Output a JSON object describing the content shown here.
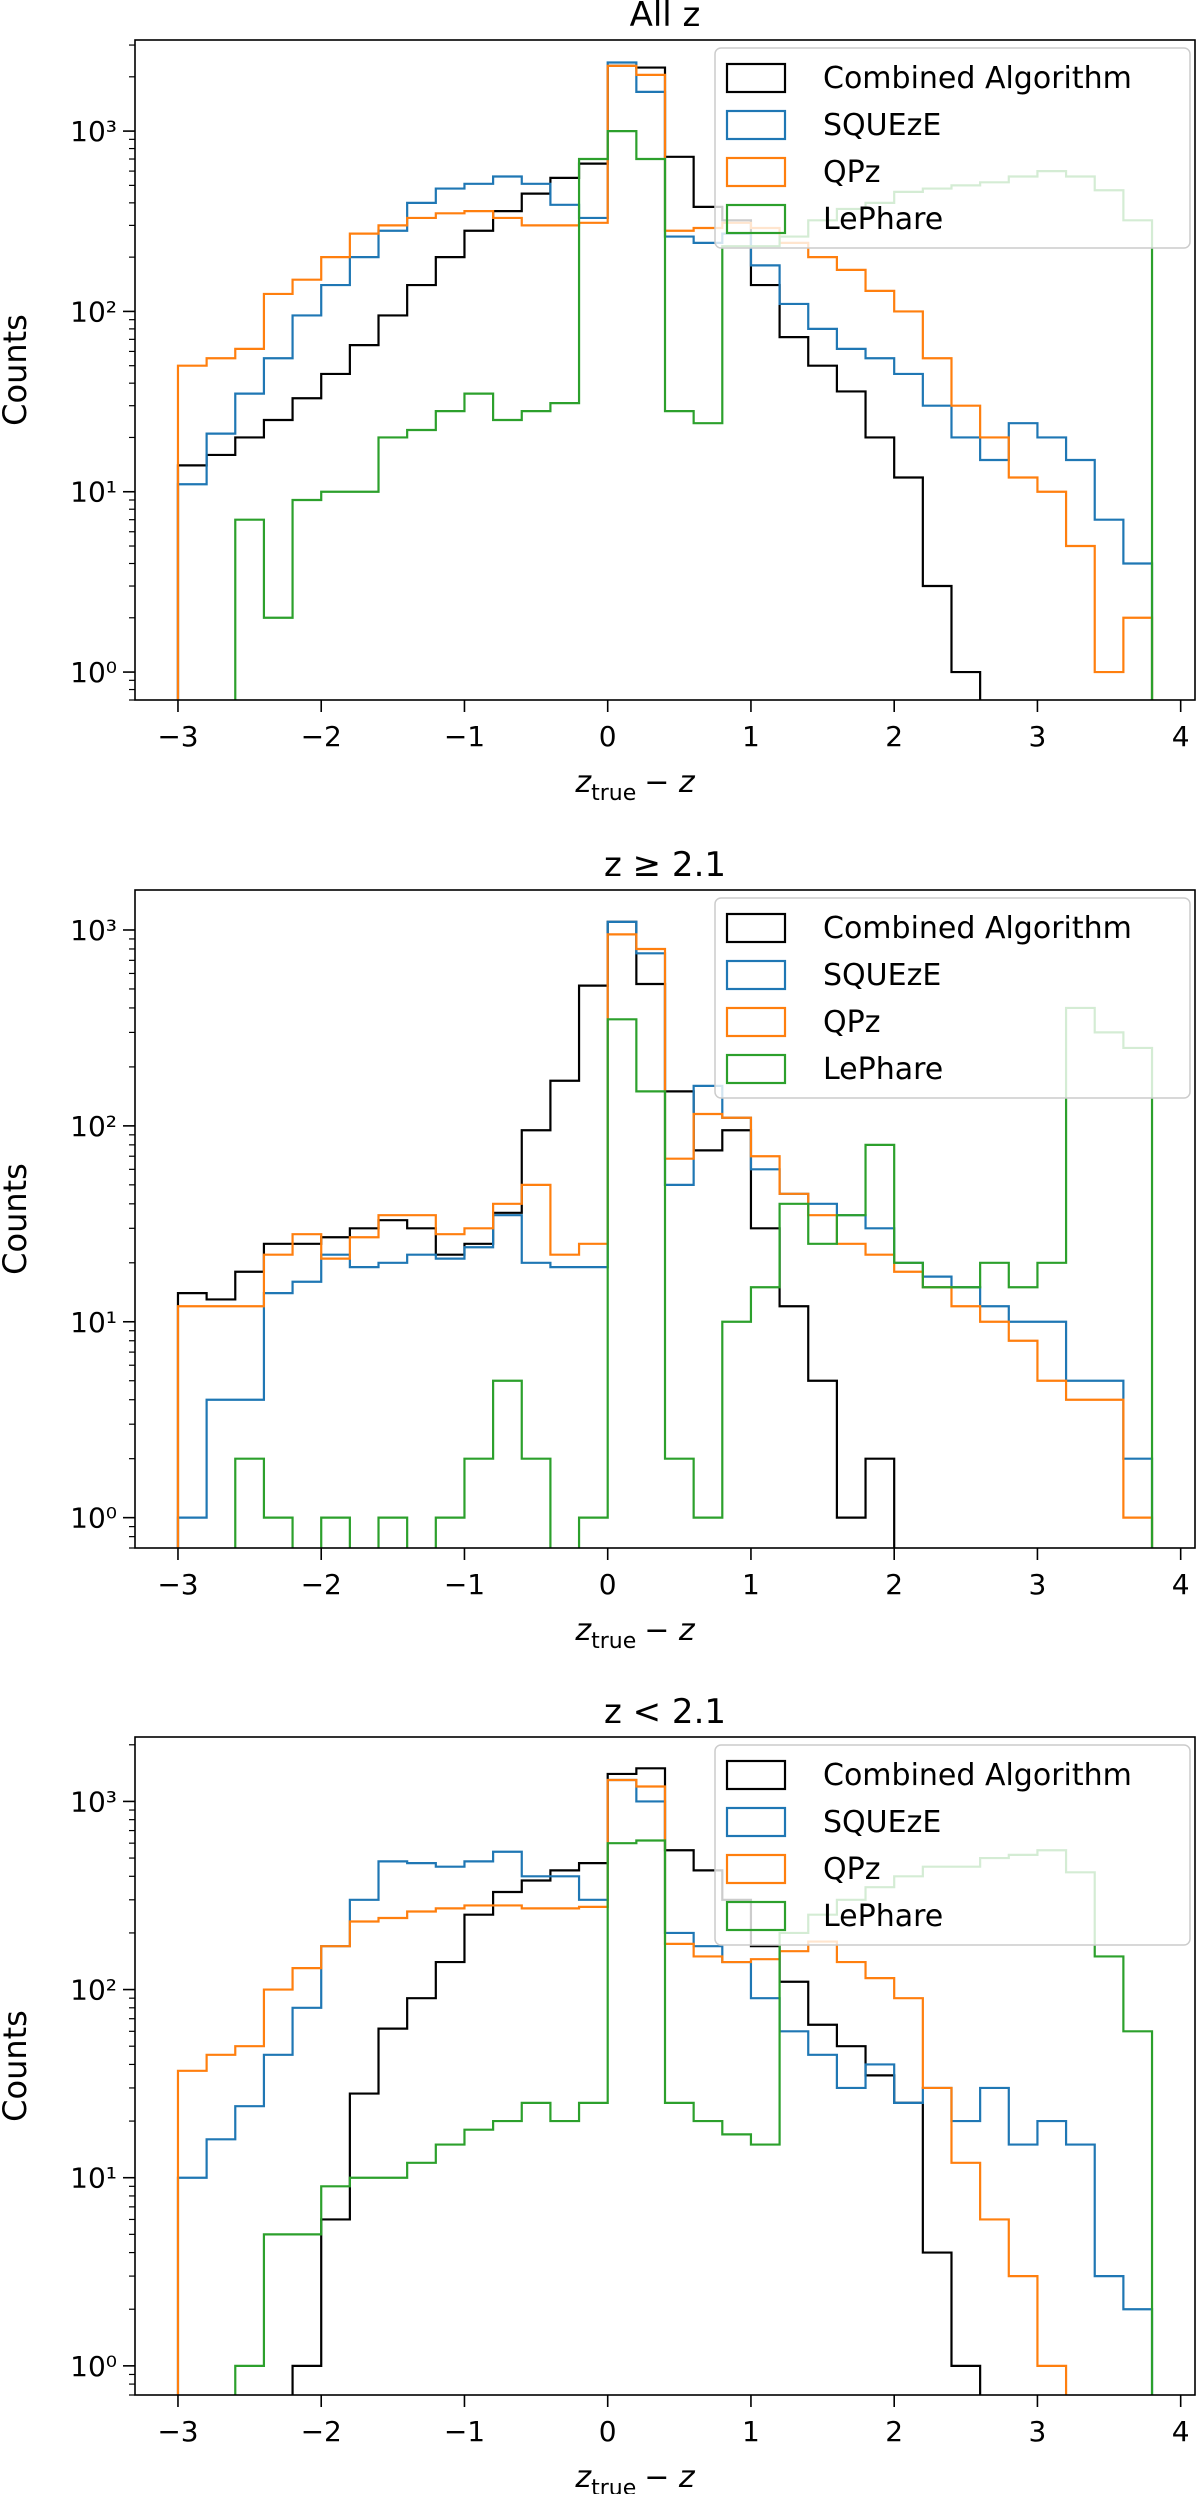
{
  "figure": {
    "xlabel_main": "z",
    "xlabel_sub": "true",
    "xlabel_tail": "− z",
    "ylabel": "Counts"
  },
  "chart_data": [
    {
      "type": "histogram",
      "title": "All z",
      "xlabel": "z_true − z",
      "ylabel": "Counts",
      "yscale": "log",
      "xlim": [
        -3.3,
        4.1
      ],
      "ylim": [
        0.7,
        3200
      ],
      "xticks": [
        -3,
        -2,
        -1,
        0,
        1,
        2,
        3,
        4
      ],
      "xtick_labels": [
        "−3",
        "−2",
        "−1",
        "0",
        "1",
        "2",
        "3",
        "4"
      ],
      "ytick_labels": [
        "10⁰",
        "10¹",
        "10²",
        "10³"
      ],
      "legend": [
        "Combined Algorithm",
        "SQUEzE",
        "QPz",
        "LePhare"
      ],
      "legend_position": "top-right",
      "bin_edges": [
        -3.0,
        -2.8,
        -2.6,
        -2.4,
        -2.2,
        -2.0,
        -1.8,
        -1.6,
        -1.4,
        -1.2,
        -1.0,
        -0.8,
        -0.6,
        -0.4,
        -0.2,
        0.0,
        0.2,
        0.4,
        0.6,
        0.8,
        1.0,
        1.2,
        1.4,
        1.6,
        1.8,
        2.0,
        2.2,
        2.4,
        2.6,
        2.8,
        3.0,
        3.2,
        3.4,
        3.6,
        3.8
      ],
      "series": [
        {
          "name": "Combined Algorithm",
          "color": "#000000",
          "values": [
            14,
            16,
            20,
            25,
            33,
            45,
            65,
            95,
            140,
            200,
            280,
            360,
            450,
            550,
            660,
            2300,
            2250,
            720,
            380,
            320,
            140,
            72,
            50,
            36,
            20,
            12,
            3,
            1,
            0,
            0,
            0,
            0,
            0,
            0
          ]
        },
        {
          "name": "SQUEzE",
          "color": "#1f77b4",
          "values": [
            11,
            21,
            35,
            55,
            95,
            140,
            200,
            280,
            400,
            480,
            510,
            560,
            510,
            390,
            330,
            2400,
            1650,
            260,
            240,
            270,
            180,
            110,
            80,
            62,
            55,
            45,
            30,
            20,
            15,
            24,
            20,
            15,
            7,
            4
          ]
        },
        {
          "name": "QPz",
          "color": "#ff7f0e",
          "values": [
            50,
            55,
            62,
            125,
            150,
            200,
            270,
            300,
            330,
            350,
            360,
            330,
            300,
            300,
            310,
            2300,
            2050,
            280,
            290,
            310,
            290,
            240,
            200,
            170,
            130,
            100,
            55,
            30,
            20,
            12,
            10,
            5,
            1,
            2
          ]
        },
        {
          "name": "LePhare",
          "color": "#2ca02c",
          "values": [
            0,
            0,
            7,
            2,
            9,
            10,
            10,
            20,
            22,
            28,
            35,
            25,
            28,
            31,
            700,
            1000,
            700,
            28,
            24,
            230,
            230,
            260,
            320,
            370,
            400,
            460,
            480,
            500,
            520,
            560,
            600,
            560,
            470,
            320
          ]
        }
      ]
    },
    {
      "type": "histogram",
      "title": "z ≥ 2.1",
      "xlabel": "z_true − z",
      "ylabel": "Counts",
      "yscale": "log",
      "xlim": [
        -3.3,
        4.1
      ],
      "ylim": [
        0.7,
        1600
      ],
      "xticks": [
        -3,
        -2,
        -1,
        0,
        1,
        2,
        3,
        4
      ],
      "xtick_labels": [
        "−3",
        "−2",
        "−1",
        "0",
        "1",
        "2",
        "3",
        "4"
      ],
      "ytick_labels": [
        "10⁰",
        "10¹",
        "10²",
        "10³"
      ],
      "legend": [
        "Combined Algorithm",
        "SQUEzE",
        "QPz",
        "LePhare"
      ],
      "legend_position": "top-right",
      "bin_edges": [
        -3.0,
        -2.8,
        -2.6,
        -2.4,
        -2.2,
        -2.0,
        -1.8,
        -1.6,
        -1.4,
        -1.2,
        -1.0,
        -0.8,
        -0.6,
        -0.4,
        -0.2,
        0.0,
        0.2,
        0.4,
        0.6,
        0.8,
        1.0,
        1.2,
        1.4,
        1.6,
        1.8,
        2.0,
        2.2,
        2.4,
        2.6,
        2.8,
        3.0,
        3.2,
        3.4,
        3.6,
        3.8
      ],
      "series": [
        {
          "name": "Combined Algorithm",
          "color": "#000000",
          "values": [
            14,
            13,
            18,
            25,
            25,
            27,
            30,
            33,
            30,
            22,
            25,
            36,
            95,
            170,
            520,
            1100,
            530,
            150,
            75,
            95,
            30,
            12,
            5,
            1,
            2,
            0,
            0,
            0,
            0,
            0,
            0,
            0,
            0,
            0
          ]
        },
        {
          "name": "SQUEzE",
          "color": "#1f77b4",
          "values": [
            1,
            4,
            4,
            14,
            16,
            22,
            19,
            20,
            22,
            21,
            24,
            35,
            20,
            19,
            19,
            1100,
            760,
            50,
            160,
            110,
            60,
            45,
            40,
            35,
            30,
            20,
            17,
            15,
            12,
            10,
            10,
            5,
            5,
            2
          ]
        },
        {
          "name": "QPz",
          "color": "#ff7f0e",
          "values": [
            12,
            12,
            12,
            22,
            28,
            21,
            27,
            35,
            35,
            28,
            30,
            40,
            50,
            22,
            25,
            950,
            800,
            68,
            115,
            110,
            70,
            45,
            35,
            25,
            22,
            18,
            15,
            12,
            10,
            8,
            5,
            4,
            4,
            1
          ]
        },
        {
          "name": "LePhare",
          "color": "#2ca02c",
          "values": [
            0,
            0,
            2,
            1,
            0,
            1,
            0,
            1,
            0,
            1,
            2,
            5,
            2,
            0,
            1,
            350,
            150,
            2,
            1,
            10,
            15,
            40,
            25,
            35,
            80,
            20,
            15,
            15,
            20,
            15,
            20,
            400,
            300,
            250
          ]
        }
      ]
    },
    {
      "type": "histogram",
      "title": "z < 2.1",
      "xlabel": "z_true − z",
      "ylabel": "Counts",
      "yscale": "log",
      "xlim": [
        -3.3,
        4.1
      ],
      "ylim": [
        0.7,
        2200
      ],
      "xticks": [
        -3,
        -2,
        -1,
        0,
        1,
        2,
        3,
        4
      ],
      "xtick_labels": [
        "−3",
        "−2",
        "−1",
        "0",
        "1",
        "2",
        "3",
        "4"
      ],
      "ytick_labels": [
        "10⁰",
        "10¹",
        "10²",
        "10³"
      ],
      "legend": [
        "Combined Algorithm",
        "SQUEzE",
        "QPz",
        "LePhare"
      ],
      "legend_position": "top-right",
      "bin_edges": [
        -3.0,
        -2.8,
        -2.6,
        -2.4,
        -2.2,
        -2.0,
        -1.8,
        -1.6,
        -1.4,
        -1.2,
        -1.0,
        -0.8,
        -0.6,
        -0.4,
        -0.2,
        0.0,
        0.2,
        0.4,
        0.6,
        0.8,
        1.0,
        1.2,
        1.4,
        1.6,
        1.8,
        2.0,
        2.2,
        2.4,
        2.6,
        2.8,
        3.0,
        3.2,
        3.4,
        3.6,
        3.8
      ],
      "series": [
        {
          "name": "Combined Algorithm",
          "color": "#000000",
          "values": [
            0,
            0,
            0,
            0,
            1,
            6,
            28,
            62,
            90,
            140,
            250,
            330,
            380,
            430,
            470,
            1400,
            1500,
            550,
            430,
            300,
            170,
            110,
            65,
            50,
            35,
            25,
            4,
            1,
            0,
            0,
            0,
            0,
            0,
            0
          ]
        },
        {
          "name": "SQUEzE",
          "color": "#1f77b4",
          "values": [
            10,
            16,
            24,
            45,
            80,
            170,
            300,
            480,
            470,
            450,
            480,
            540,
            400,
            400,
            300,
            1300,
            1000,
            200,
            170,
            140,
            90,
            60,
            45,
            30,
            40,
            25,
            30,
            20,
            30,
            15,
            20,
            15,
            3,
            2
          ]
        },
        {
          "name": "QPz",
          "color": "#ff7f0e",
          "values": [
            37,
            45,
            50,
            100,
            130,
            170,
            230,
            240,
            260,
            270,
            280,
            280,
            270,
            270,
            275,
            1300,
            1200,
            175,
            150,
            140,
            145,
            160,
            180,
            140,
            115,
            90,
            30,
            12,
            6,
            3,
            1,
            0,
            0,
            0
          ]
        },
        {
          "name": "LePhare",
          "color": "#2ca02c",
          "values": [
            0,
            0,
            1,
            5,
            5,
            9,
            10,
            10,
            12,
            15,
            18,
            20,
            25,
            20,
            25,
            600,
            620,
            25,
            20,
            17,
            15,
            200,
            250,
            300,
            350,
            400,
            450,
            450,
            500,
            520,
            550,
            420,
            150,
            60
          ]
        }
      ]
    }
  ]
}
